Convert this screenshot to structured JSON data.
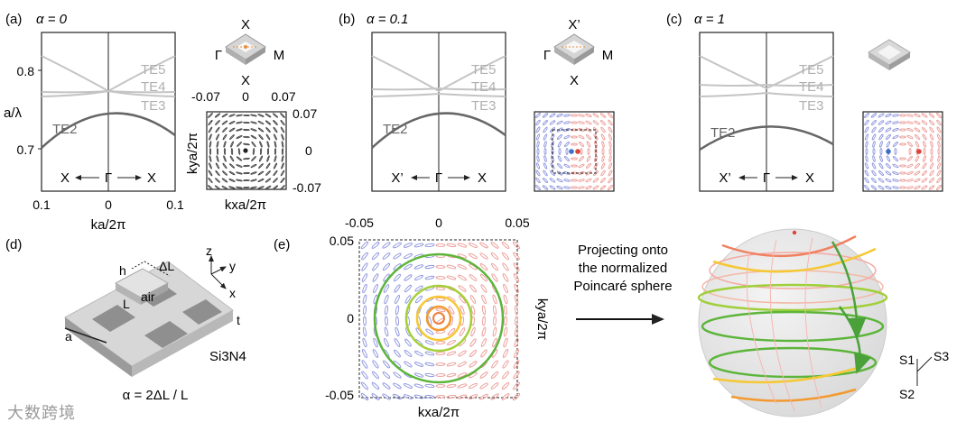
{
  "panels": {
    "a": {
      "label": "(a)",
      "alpha": "α = 0",
      "ylabel": "a/λ",
      "xlabel": "ka/2π",
      "yticks": [
        "0.8",
        "0.7"
      ],
      "xticks": [
        "0.1",
        "0",
        "0.1"
      ],
      "dir_left": "X",
      "dir_center": "Γ",
      "dir_right": "X",
      "bands": [
        "TE5",
        "TE4",
        "TE3",
        "TE2"
      ],
      "bz": {
        "top": "X",
        "left": "Γ",
        "right": "M",
        "bottom": "X"
      },
      "kx_ticks": [
        "-0.07",
        "0",
        "0.07"
      ],
      "ky_ticks": [
        "0.07",
        "0",
        "-0.07"
      ],
      "kx_label": "kxa/2π",
      "ky_label": "kya/2π"
    },
    "b": {
      "label": "(b)",
      "alpha": "α = 0.1",
      "dir_left": "X’",
      "dir_center": "Γ",
      "dir_right": "X",
      "bands": [
        "TE5",
        "TE4",
        "TE3",
        "TE2"
      ],
      "bz": {
        "top": "X’",
        "left": "Γ",
        "right": "M",
        "bottom": "X"
      }
    },
    "c": {
      "label": "(c)",
      "alpha": "α = 1",
      "dir_left": "X’",
      "dir_center": "Γ",
      "dir_right": "X",
      "bands": [
        "TE5",
        "TE4",
        "TE3",
        "TE2"
      ]
    },
    "d": {
      "label": "(d)",
      "h": "h",
      "dL": "ΔL",
      "air": "air",
      "L": "L",
      "a": "a",
      "t": "t",
      "material": "Si3N4",
      "axis_z": "z",
      "axis_y": "y",
      "axis_x": "x",
      "formula": "α = 2ΔL / L"
    },
    "e": {
      "label": "(e)",
      "xticks": [
        "-0.05",
        "0",
        "0.05"
      ],
      "yticks": [
        "0.05",
        "0",
        "-0.05"
      ],
      "xlabel": "kxa/2π",
      "ylabel": "kya/2π"
    },
    "f": {
      "text_lines": [
        "Projecting onto",
        "the normalized",
        "Poincaré sphere"
      ],
      "s1": "S1",
      "s2": "S2",
      "s3": "S3"
    }
  },
  "colors": {
    "band_dark": "#666666",
    "band_light": "#c4c4c4",
    "blue": "#8d95de",
    "red": "#ec9c97",
    "green": "#5cb53a",
    "orange": "#f29a2f",
    "yellow": "#f6c833"
  },
  "watermark": "大数跨境"
}
